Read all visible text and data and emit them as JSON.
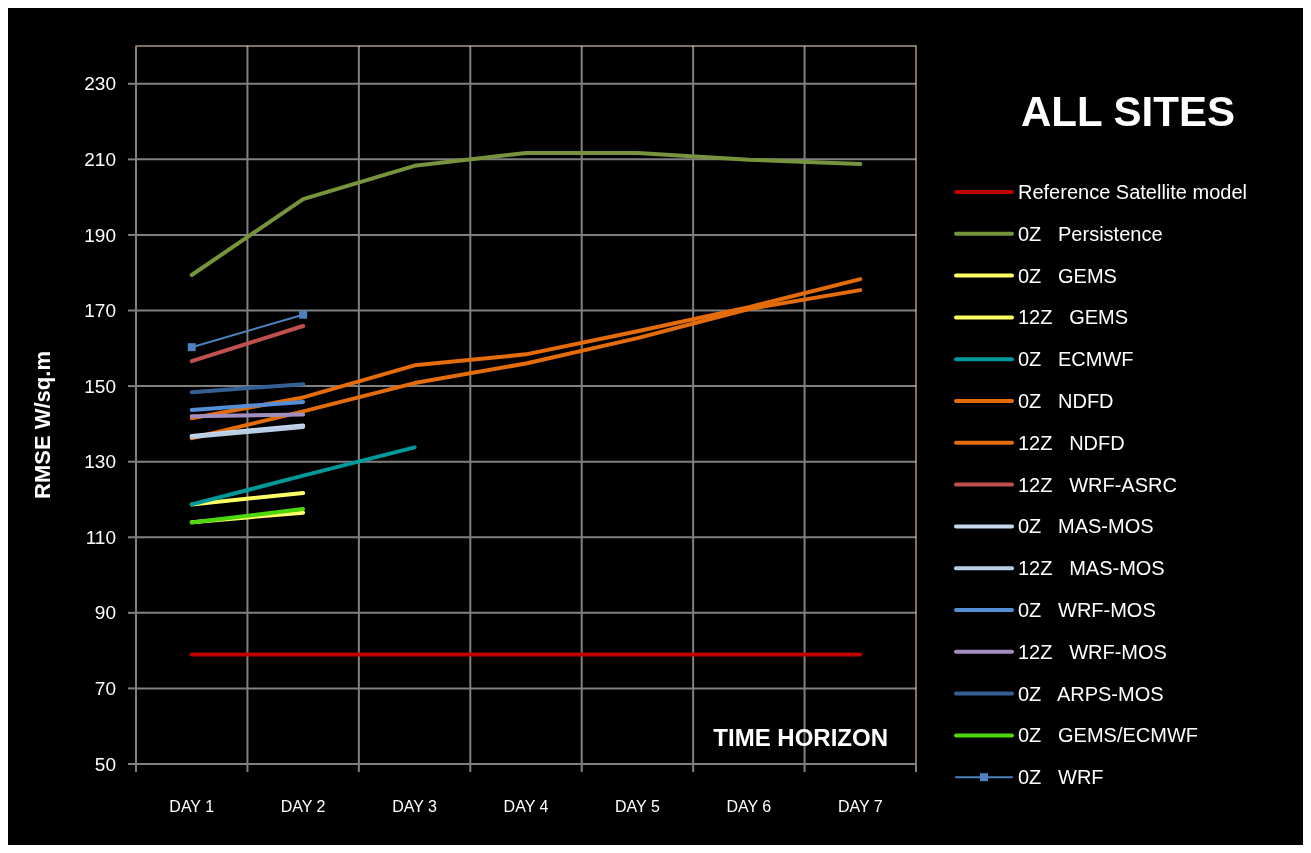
{
  "chart_data": {
    "type": "line",
    "title": "ALL SITES",
    "xlabel": "TIME HORIZON",
    "ylabel": "RMSE W/sq.m",
    "categories": [
      "DAY 1",
      "DAY 2",
      "DAY 3",
      "DAY 4",
      "DAY 5",
      "DAY 6",
      "DAY 7"
    ],
    "ylim": [
      50,
      240
    ],
    "yticks": [
      50,
      70,
      90,
      110,
      130,
      150,
      170,
      190,
      210,
      230
    ],
    "grid": true,
    "legend": "right",
    "marker": "none",
    "line_style": "solid",
    "series": [
      {
        "name": "Reference Satellite model",
        "color": "#c00000",
        "values": [
          79,
          79,
          79,
          79,
          79,
          79,
          79
        ]
      },
      {
        "name": "0Z   Persistence",
        "color": "#77933c",
        "values": [
          179.4,
          199.5,
          208.3,
          211.7,
          211.7,
          209.9,
          208.8
        ]
      },
      {
        "name": "0Z   GEMS",
        "color": "#ffff66",
        "values": [
          118.7,
          121.7,
          null,
          null,
          null,
          null,
          null
        ]
      },
      {
        "name": "12Z   GEMS",
        "color": "#ffff66",
        "values": [
          114,
          116.5,
          null,
          null,
          null,
          null,
          null
        ]
      },
      {
        "name": "0Z   ECMWF",
        "color": "#009999",
        "values": [
          118.7,
          126.3,
          133.8,
          null,
          null,
          null,
          null
        ]
      },
      {
        "name": "0Z   NDFD",
        "color": "#e46c0a",
        "values": [
          141.5,
          147,
          155.5,
          158.4,
          164.5,
          170.9,
          178.3
        ]
      },
      {
        "name": "12Z   NDFD",
        "color": "#e46c0a",
        "values": [
          136.2,
          143.3,
          150.8,
          156,
          162.7,
          170.4,
          175.4
        ]
      },
      {
        "name": "12Z   WRF-ASRC",
        "color": "#c0504d",
        "values": [
          156.6,
          165.9,
          null,
          null,
          null,
          null,
          null
        ]
      },
      {
        "name": "0Z   MAS-MOS",
        "color": "#c6d9f1",
        "values": [
          136.8,
          139.6,
          null,
          null,
          null,
          null,
          null
        ]
      },
      {
        "name": "12Z   MAS-MOS",
        "color": "#b9cde5",
        "values": [
          136.5,
          139.2,
          null,
          null,
          null,
          null,
          null
        ]
      },
      {
        "name": "0Z   WRF-MOS",
        "color": "#558ed5",
        "values": [
          143.7,
          145.8,
          null,
          null,
          null,
          null,
          null
        ]
      },
      {
        "name": "12Z   WRF-MOS",
        "color": "#a28fc0",
        "values": [
          142,
          142.5,
          null,
          null,
          null,
          null,
          null
        ]
      },
      {
        "name": "0Z   ARPS-MOS",
        "color": "#376092",
        "values": [
          148.4,
          150.5,
          null,
          null,
          null,
          null,
          null
        ]
      },
      {
        "name": "0Z   GEMS/ECMWF",
        "color": "#4cd60c",
        "values": [
          113.9,
          117.5,
          null,
          null,
          null,
          null,
          null
        ]
      },
      {
        "name": "0Z   WRF",
        "color": "#4f81bd",
        "marker": "square",
        "values": [
          160.3,
          168.9,
          null,
          null,
          null,
          null,
          null
        ]
      }
    ]
  }
}
